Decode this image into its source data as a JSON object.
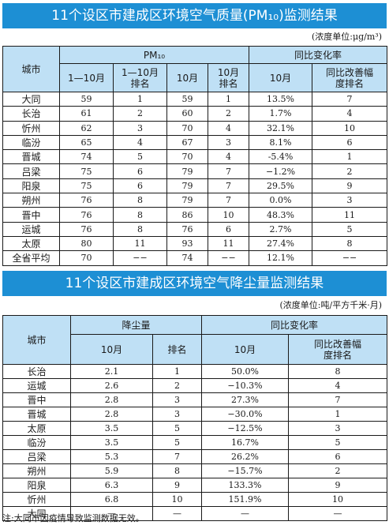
{
  "pm10": {
    "title": "11个设区市建成区环境空气质量(PM₁₀)监测结果",
    "unit": "(浓度单位:μg/m³)",
    "headers": {
      "city": "城市",
      "group1": "PM₁₀",
      "group2": "同比变化率",
      "jan_oct": "1—10月",
      "jan_oct_rank": "1—10月排名",
      "oct": "10月",
      "oct_rank": "10月排名",
      "yoy_oct": "10月",
      "improve_rank": "同比改善幅度排名"
    },
    "rows": [
      [
        "大同",
        "59",
        "1",
        "59",
        "1",
        "13.5%",
        "7"
      ],
      [
        "长治",
        "61",
        "2",
        "60",
        "2",
        "1.7%",
        "4"
      ],
      [
        "忻州",
        "62",
        "3",
        "70",
        "4",
        "32.1%",
        "10"
      ],
      [
        "临汾",
        "65",
        "4",
        "67",
        "3",
        "8.1%",
        "6"
      ],
      [
        "晋城",
        "74",
        "5",
        "70",
        "4",
        "-5.4%",
        "1"
      ],
      [
        "吕梁",
        "75",
        "6",
        "79",
        "7",
        "−1.2%",
        "2"
      ],
      [
        "阳泉",
        "75",
        "6",
        "79",
        "7",
        "29.5%",
        "9"
      ],
      [
        "朔州",
        "76",
        "8",
        "79",
        "7",
        "0.0%",
        "3"
      ],
      [
        "晋中",
        "76",
        "8",
        "86",
        "10",
        "48.3%",
        "11"
      ],
      [
        "运城",
        "76",
        "8",
        "76",
        "6",
        "2.7%",
        "5"
      ],
      [
        "太原",
        "80",
        "11",
        "93",
        "11",
        "27.4%",
        "8"
      ],
      [
        "全省平均",
        "70",
        "−−",
        "74",
        "−−",
        "12.1%",
        "−−"
      ]
    ]
  },
  "dust": {
    "title": "11个设区市建成区环境空气降尘量监测结果",
    "unit": "(浓度单位:吨/平方千米·月)",
    "headers": {
      "city": "城市",
      "group1": "降尘量",
      "group2": "同比变化率",
      "oct": "10月",
      "rank": "排名",
      "yoy_oct": "10月",
      "improve_rank": "同比改善幅度排名"
    },
    "rows": [
      [
        "长治",
        "2.1",
        "1",
        "50.0%",
        "8"
      ],
      [
        "运城",
        "2.6",
        "2",
        "−10.3%",
        "4"
      ],
      [
        "晋中",
        "2.8",
        "3",
        "27.3%",
        "7"
      ],
      [
        "晋城",
        "2.8",
        "3",
        "−30.0%",
        "1"
      ],
      [
        "太原",
        "3.5",
        "5",
        "−12.5%",
        "3"
      ],
      [
        "临汾",
        "3.5",
        "5",
        "16.7%",
        "5"
      ],
      [
        "吕梁",
        "5.3",
        "7",
        "26.2%",
        "6"
      ],
      [
        "朔州",
        "5.9",
        "8",
        "−15.7%",
        "2"
      ],
      [
        "阳泉",
        "6.3",
        "9",
        "133.3%",
        "9"
      ],
      [
        "忻州",
        "6.8",
        "10",
        "151.9%",
        "10"
      ],
      [
        "大同",
        "—",
        "—",
        "—",
        "—"
      ]
    ]
  },
  "note": "注:大同市因疫情导致监测数据无效。"
}
